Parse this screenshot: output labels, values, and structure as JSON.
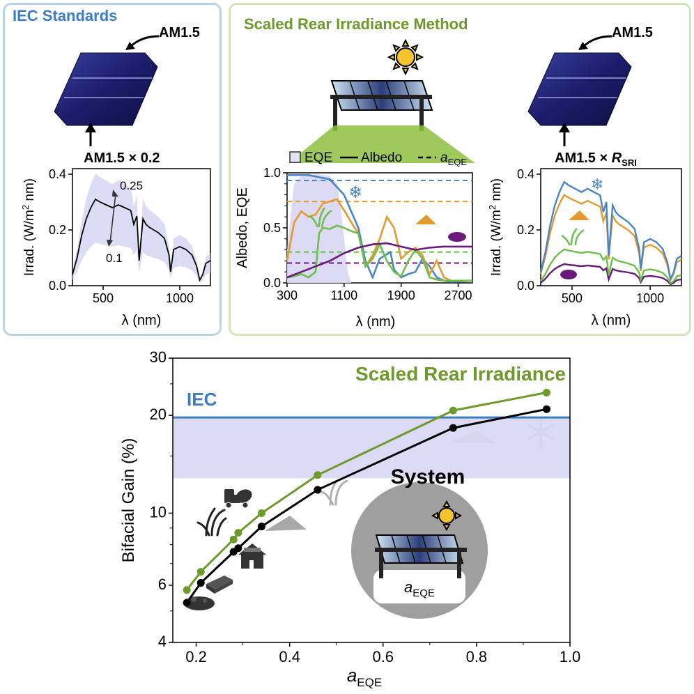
{
  "panels": {
    "iec": {
      "title": "IEC Standards",
      "front_label": "AM1.5",
      "rear_label": "AM1.5 × 0.2"
    },
    "sri": {
      "title": "Scaled Rear Irradiance Method",
      "front_label": "AM1.5",
      "rear_label_main": "AM1.5 × ",
      "rear_label_r": "R",
      "rear_label_sub": "SRI"
    }
  },
  "colors": {
    "iec_blue": "#3d7cc1",
    "sri_green": "#6e9a2b",
    "snow": "#4a86c5",
    "sand": "#e39a2f",
    "grass": "#6cc04a",
    "soil": "#6a1a7a",
    "band": "#d8d6f3",
    "black": "#000000"
  },
  "chart_data": [
    {
      "id": "iec_spectrum",
      "type": "area",
      "xlabel": "λ (nm)",
      "ylabel": "Irrad. (W/m² nm)",
      "ylabel_parts": {
        "main": "Irrad. (W/m",
        "sup": "2",
        "end": " nm)"
      },
      "xlim": [
        300,
        1200
      ],
      "ylim": [
        0,
        0.42
      ],
      "xticks": [
        500,
        1000
      ],
      "yticks": [
        0.0,
        0.2,
        0.4
      ],
      "ytick_labels": [
        "0.0",
        "0.2",
        "0.4"
      ],
      "annotations": {
        "upper": "0.25",
        "lower": "0.1"
      },
      "series": [
        {
          "type": "line",
          "x": [
            300,
            330,
            360,
            390,
            420,
            450,
            480,
            520,
            560,
            600,
            640,
            680,
            700,
            720,
            735,
            760,
            780,
            800,
            830,
            860,
            900,
            930,
            940,
            960,
            1000,
            1040,
            1080,
            1110,
            1130,
            1150,
            1170,
            1200
          ],
          "y": [
            0.04,
            0.1,
            0.18,
            0.24,
            0.28,
            0.31,
            0.3,
            0.29,
            0.28,
            0.29,
            0.28,
            0.27,
            0.22,
            0.25,
            0.09,
            0.24,
            0.22,
            0.21,
            0.2,
            0.19,
            0.17,
            0.11,
            0.05,
            0.13,
            0.14,
            0.13,
            0.11,
            0.07,
            0.02,
            0.04,
            0.08,
            0.09
          ]
        }
      ]
    },
    {
      "id": "sri_albedo",
      "type": "line",
      "legend": {
        "eqe": "EQE",
        "albedo": "Albedo",
        "a_main": "a",
        "a_sub": "EQE"
      },
      "xlabel": "λ (nm)",
      "ylabel": "Albedo, EQE",
      "xlim": [
        300,
        2900
      ],
      "ylim": [
        0,
        1.0
      ],
      "xticks": [
        300,
        1100,
        1900,
        2700
      ],
      "yticks": [
        0.0,
        0.5,
        1.0
      ],
      "ytick_labels": [
        "0.0",
        "0.5",
        "1.0"
      ],
      "eqe": {
        "x": [
          300,
          400,
          500,
          700,
          900,
          1000,
          1050,
          1100,
          1150,
          1200
        ],
        "y": [
          0.3,
          0.9,
          0.97,
          0.99,
          0.97,
          0.9,
          0.7,
          0.4,
          0.1,
          0.0
        ]
      },
      "series": [
        {
          "name": "snow",
          "x": [
            300,
            600,
            900,
            1100,
            1300,
            1400,
            1500,
            1600,
            1750,
            1800,
            1900,
            2000,
            2100,
            2200,
            2300,
            2400,
            2500,
            2600,
            2900
          ],
          "y": [
            0.98,
            0.98,
            0.94,
            0.8,
            0.5,
            0.2,
            0.05,
            0.22,
            0.28,
            0.12,
            0.05,
            0.08,
            0.1,
            0.22,
            0.15,
            0.05,
            0.02,
            0.01,
            0.02
          ]
        },
        {
          "name": "sand",
          "x": [
            300,
            400,
            500,
            600,
            700,
            800,
            900,
            1000,
            1100,
            1200,
            1300,
            1400,
            1500,
            1600,
            1700,
            1800,
            1900,
            2000,
            2100,
            2200,
            2300,
            2400,
            2500,
            2600,
            2900
          ],
          "y": [
            0.2,
            0.55,
            0.65,
            0.6,
            0.62,
            0.72,
            0.74,
            0.76,
            0.66,
            0.55,
            0.45,
            0.15,
            0.25,
            0.4,
            0.6,
            0.5,
            0.22,
            0.28,
            0.32,
            0.25,
            0.08,
            0.2,
            0.05,
            0.02,
            0.02
          ]
        },
        {
          "name": "grass",
          "x": [
            300,
            400,
            500,
            600,
            700,
            750,
            800,
            900,
            1000,
            1100,
            1200,
            1300,
            1400,
            1500,
            1600,
            1700,
            1800,
            1900,
            2000,
            2100,
            2200,
            2300,
            2400,
            2500,
            2900
          ],
          "y": [
            0.05,
            0.06,
            0.08,
            0.05,
            0.1,
            0.45,
            0.5,
            0.49,
            0.52,
            0.5,
            0.47,
            0.45,
            0.15,
            0.22,
            0.35,
            0.2,
            0.1,
            0.06,
            0.2,
            0.3,
            0.22,
            0.05,
            0.03,
            0.02,
            0.02
          ]
        },
        {
          "name": "soil",
          "x": [
            300,
            500,
            700,
            900,
            1100,
            1300,
            1500,
            1700,
            1900,
            2100,
            2300,
            2500,
            2700,
            2900
          ],
          "y": [
            0.05,
            0.1,
            0.15,
            0.2,
            0.27,
            0.32,
            0.35,
            0.36,
            0.33,
            0.3,
            0.32,
            0.33,
            0.33,
            0.33
          ]
        }
      ],
      "dashed_levels": [
        {
          "name": "snow",
          "y": 0.93
        },
        {
          "name": "sand",
          "y": 0.74
        },
        {
          "name": "grass",
          "y": 0.28
        },
        {
          "name": "soil",
          "y": 0.18
        }
      ]
    },
    {
      "id": "sri_spectrum",
      "type": "line",
      "xlabel": "λ (nm)",
      "ylabel": "Irrad. (W/m² nm)",
      "ylabel_parts": {
        "main": "Irrad. (W/m",
        "sup": "2",
        "end": " nm)"
      },
      "xlim": [
        300,
        1200
      ],
      "ylim": [
        0,
        0.42
      ],
      "xticks": [
        500,
        1000
      ],
      "yticks": [
        0.0,
        0.2,
        0.4
      ],
      "ytick_labels": [
        "0.0",
        "0.2",
        "0.4"
      ],
      "base_x": [
        300,
        330,
        360,
        390,
        420,
        450,
        480,
        520,
        560,
        600,
        640,
        680,
        700,
        720,
        735,
        760,
        780,
        800,
        830,
        860,
        900,
        930,
        940,
        960,
        1000,
        1040,
        1080,
        1110,
        1130,
        1150,
        1170,
        1200
      ],
      "base_y": [
        0.04,
        0.1,
        0.18,
        0.24,
        0.28,
        0.31,
        0.3,
        0.29,
        0.28,
        0.29,
        0.28,
        0.27,
        0.22,
        0.25,
        0.09,
        0.24,
        0.22,
        0.21,
        0.2,
        0.19,
        0.17,
        0.11,
        0.05,
        0.13,
        0.14,
        0.13,
        0.11,
        0.07,
        0.02,
        0.04,
        0.08,
        0.09
      ],
      "series": [
        {
          "name": "snow",
          "scale": 1.2
        },
        {
          "name": "sand",
          "scale": 1.05
        },
        {
          "name": "grass",
          "scale": 0.42
        },
        {
          "name": "soil",
          "scale": 0.25
        }
      ]
    },
    {
      "id": "bifacial_gain",
      "type": "line",
      "xlabel_main": "a",
      "xlabel_sub": "EQE",
      "ylabel": "Bifacial Gain (%)",
      "xlim": [
        0.15,
        1.0
      ],
      "ylim": [
        4,
        30
      ],
      "yscale": "log",
      "xticks": [
        0.2,
        0.4,
        0.6,
        0.8,
        1.0
      ],
      "xtick_labels": [
        "0.2",
        "0.4",
        "0.6",
        "0.8",
        "1.0"
      ],
      "yticks": [
        4,
        6,
        10,
        20,
        30
      ],
      "ytick_labels": [
        "4",
        "6",
        "10",
        "20",
        "30"
      ],
      "iec_label": "IEC",
      "iec_line": 19.7,
      "iec_band": [
        12.8,
        19.7
      ],
      "sri_label": "Scaled Rear Irradiance",
      "system_label": "System",
      "system_sublabel_main": "a",
      "system_sublabel_sub": "EQE",
      "series": [
        {
          "name": "Scaled Rear Irradiance",
          "x": [
            0.18,
            0.21,
            0.28,
            0.29,
            0.34,
            0.46,
            0.75,
            0.95
          ],
          "y": [
            5.8,
            6.6,
            8.3,
            8.7,
            10.0,
            13.1,
            20.7,
            23.5
          ]
        },
        {
          "name": "IEC",
          "x": [
            0.18,
            0.21,
            0.28,
            0.29,
            0.34,
            0.46,
            0.75,
            0.95
          ],
          "y": [
            5.3,
            6.1,
            7.6,
            7.8,
            9.1,
            11.8,
            18.3,
            20.9
          ]
        }
      ]
    }
  ]
}
